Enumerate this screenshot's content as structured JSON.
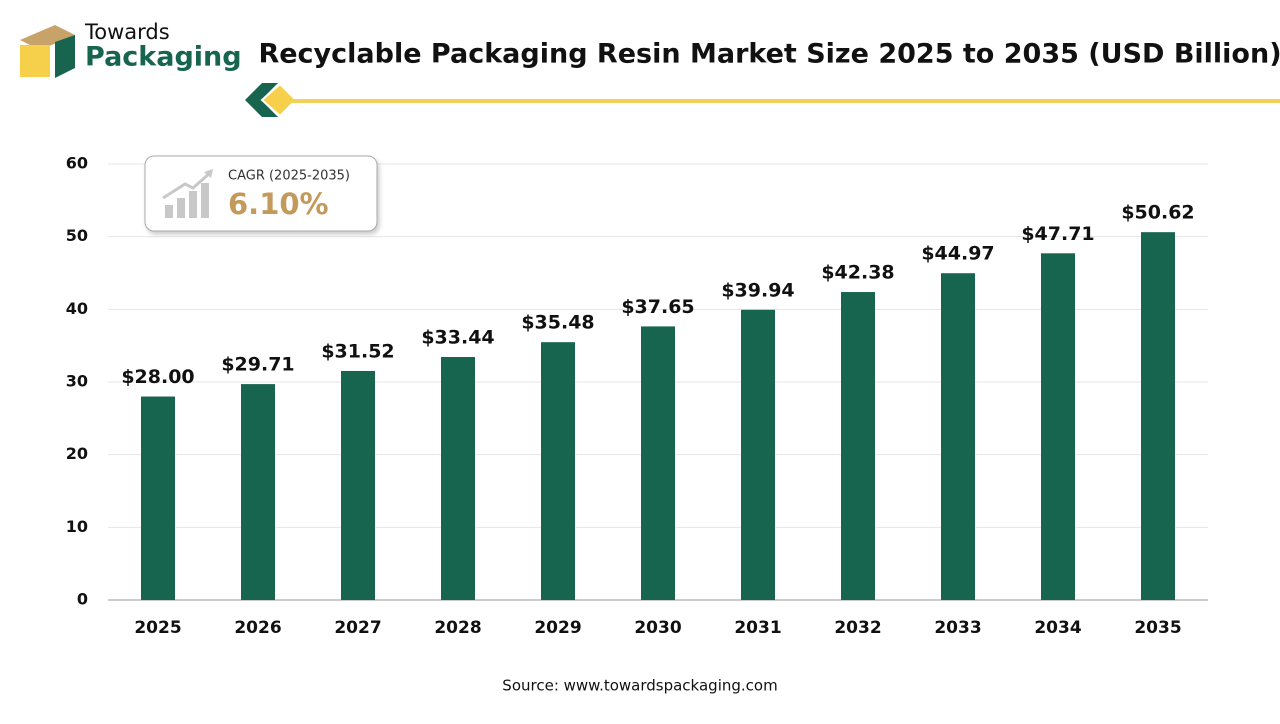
{
  "logo": {
    "line1": "Towards",
    "line2": "Packaging"
  },
  "cagr": {
    "label": "CAGR (2025-2035)",
    "value": "6.10%"
  },
  "source": "Source: www.towardspackaging.com",
  "chart_data": {
    "type": "bar",
    "title": "Recyclable Packaging Resin Market Size 2025 to 2035 (USD Billion)",
    "categories": [
      "2025",
      "2026",
      "2027",
      "2028",
      "2029",
      "2030",
      "2031",
      "2032",
      "2033",
      "2034",
      "2035"
    ],
    "values": [
      28.0,
      29.71,
      31.52,
      33.44,
      35.48,
      37.65,
      39.94,
      42.38,
      44.97,
      47.71,
      50.62
    ],
    "value_labels": [
      "$28.00",
      "$29.71",
      "$31.52",
      "$33.44",
      "$35.48",
      "$37.65",
      "$39.94",
      "$42.38",
      "$44.97",
      "$47.71",
      "$50.62"
    ],
    "color": "#17654f",
    "ylim": [
      0,
      60
    ],
    "yticks": [
      0,
      10,
      20,
      30,
      40,
      50,
      60
    ],
    "grid": true
  }
}
